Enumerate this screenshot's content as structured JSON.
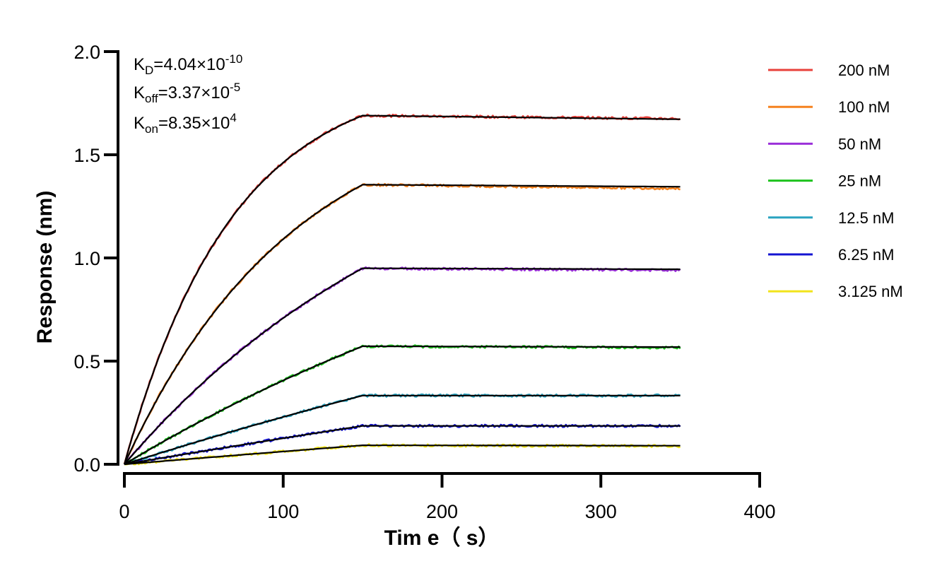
{
  "chart_data": {
    "type": "line",
    "xlabel": "Tim e（ s）",
    "ylabel": "Response (nm)",
    "xlim": [
      0,
      400
    ],
    "ylim": [
      0,
      2.0
    ],
    "x_ticks": [
      "0",
      "100",
      "200",
      "300",
      "400"
    ],
    "y_ticks": [
      "0.0",
      "0.5",
      "1.0",
      "1.5",
      "2.0"
    ],
    "x_tick_values": [
      0,
      100,
      200,
      300,
      400
    ],
    "y_tick_values": [
      0,
      0.5,
      1.0,
      1.5,
      2.0
    ],
    "grid": false,
    "legend_position": "right",
    "association_end_time": 150,
    "time_end": 350,
    "annotations": {
      "kd": {
        "main": "K",
        "sub": "D",
        "rest": "=4.04×10",
        "sup": "-10"
      },
      "koff": {
        "main": "K",
        "sub": "off",
        "rest": "=3.37×10",
        "sup": "-5"
      },
      "kon": {
        "main": "K",
        "sub": "on",
        "rest": "=8.35×10",
        "sup": "4"
      }
    },
    "fit_color": "#000000",
    "series": [
      {
        "name": "200 nM",
        "color": "#e8413b",
        "plateau": 1.69,
        "end_value": 1.675,
        "fit_end": 1.672,
        "curvature": 2.2
      },
      {
        "name": "100 nM",
        "color": "#f5821f",
        "plateau": 1.355,
        "end_value": 1.337,
        "fit_end": 1.345,
        "curvature": 1.4
      },
      {
        "name": "50 nM",
        "color": "#9b30d9",
        "plateau": 0.95,
        "end_value": 0.94,
        "fit_end": 0.945,
        "curvature": 0.75
      },
      {
        "name": "25 nM",
        "color": "#1ec31e",
        "plateau": 0.572,
        "end_value": 0.565,
        "fit_end": 0.568,
        "curvature": 0.4
      },
      {
        "name": "12.5 nM",
        "color": "#2aa3c0",
        "plateau": 0.333,
        "end_value": 0.333,
        "fit_end": 0.333,
        "curvature": 0.2
      },
      {
        "name": "6.25 nM",
        "color": "#1414d2",
        "plateau": 0.186,
        "end_value": 0.186,
        "fit_end": 0.186,
        "curvature": 0.1
      },
      {
        "name": "3.125 nM",
        "color": "#f2e41c",
        "plateau": 0.092,
        "end_value": 0.088,
        "fit_end": 0.09,
        "curvature": 0.05
      }
    ]
  }
}
